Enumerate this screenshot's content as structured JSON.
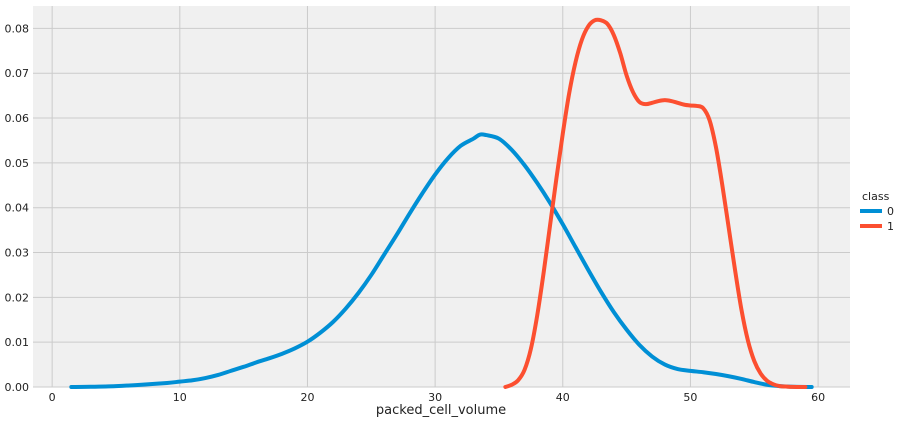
{
  "chart_data": {
    "type": "line",
    "title": "",
    "xlabel": "packed_cell_volume",
    "ylabel": "",
    "xlim": [
      -1.5,
      62.5
    ],
    "ylim": [
      0,
      0.085
    ],
    "grid": true,
    "legend_placement": "center-right",
    "legend_title": "class",
    "x_ticks": [
      "0",
      "10",
      "20",
      "30",
      "40",
      "50",
      "60"
    ],
    "x_tick_values": [
      0,
      10,
      20,
      30,
      40,
      50,
      60
    ],
    "y_ticks": [
      "0.00",
      "0.01",
      "0.02",
      "0.03",
      "0.04",
      "0.05",
      "0.06",
      "0.07",
      "0.08"
    ],
    "y_tick_values": [
      0,
      0.01,
      0.02,
      0.03,
      0.04,
      0.05,
      0.06,
      0.07,
      0.08
    ],
    "series": [
      {
        "name": "0",
        "color": "#008fd5",
        "x": [
          1.5,
          3,
          5,
          7,
          9,
          10,
          11,
          12,
          13,
          14,
          15,
          16,
          17,
          18,
          19,
          20,
          21,
          22,
          23,
          24,
          25,
          26,
          27,
          28,
          29,
          30,
          31,
          32,
          33,
          33.5,
          34,
          35,
          36,
          37,
          38,
          39,
          40,
          41,
          42,
          43,
          44,
          45,
          46,
          47,
          48,
          49,
          50,
          51,
          52,
          53,
          54,
          55,
          56,
          57,
          58,
          59.5
        ],
        "y": [
          0.0,
          5e-05,
          0.0002,
          0.0005,
          0.0009,
          0.0012,
          0.0015,
          0.002,
          0.0027,
          0.0036,
          0.0045,
          0.0055,
          0.0064,
          0.0074,
          0.0086,
          0.0101,
          0.0121,
          0.0145,
          0.0175,
          0.021,
          0.025,
          0.0295,
          0.034,
          0.0387,
          0.0432,
          0.0474,
          0.051,
          0.0538,
          0.0554,
          0.0563,
          0.0562,
          0.0554,
          0.0529,
          0.0495,
          0.0455,
          0.0411,
          0.0363,
          0.0312,
          0.0261,
          0.0212,
          0.0167,
          0.0128,
          0.0094,
          0.0068,
          0.005,
          0.004,
          0.0036,
          0.0033,
          0.0029,
          0.0024,
          0.0018,
          0.0011,
          0.0005,
          0.0002,
          5e-05,
          0.0
        ]
      },
      {
        "name": "1",
        "color": "#fc4f30",
        "x": [
          35.5,
          36,
          36.5,
          37,
          37.5,
          38,
          38.5,
          39,
          39.5,
          40,
          40.5,
          41,
          41.5,
          42,
          42.5,
          43,
          43.5,
          44,
          44.5,
          45,
          45.5,
          46,
          46.5,
          47,
          47.5,
          48,
          48.5,
          49,
          49.5,
          50,
          50.5,
          51,
          51.5,
          52,
          52.5,
          53,
          53.5,
          54,
          54.5,
          55,
          55.5,
          56,
          56.5,
          57,
          57.5,
          58,
          58.5,
          59
        ],
        "y": [
          0.0,
          0.0005,
          0.0015,
          0.0038,
          0.0085,
          0.016,
          0.0255,
          0.036,
          0.0465,
          0.0565,
          0.0655,
          0.0725,
          0.0775,
          0.0805,
          0.0818,
          0.0818,
          0.081,
          0.0785,
          0.0745,
          0.0695,
          0.0658,
          0.0636,
          0.0631,
          0.0634,
          0.0638,
          0.064,
          0.0638,
          0.0634,
          0.063,
          0.0628,
          0.0627,
          0.0622,
          0.0595,
          0.0535,
          0.045,
          0.0355,
          0.026,
          0.0172,
          0.0104,
          0.0058,
          0.003,
          0.0014,
          0.0006,
          0.0002,
          0.0001,
          2e-05,
          0.0,
          0.0
        ]
      }
    ]
  }
}
